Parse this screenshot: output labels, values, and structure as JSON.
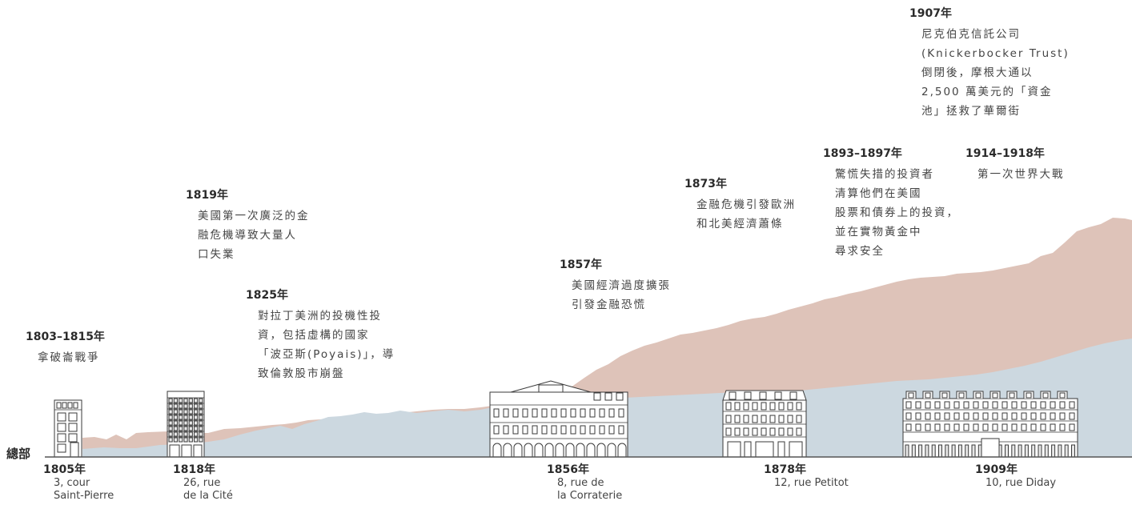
{
  "headquarters_label": "總部",
  "events": [
    {
      "year": "1803–1815年",
      "lines": [
        "拿破崙戰爭"
      ]
    },
    {
      "year": "1819年",
      "lines": [
        "美國第一次廣泛的金",
        "融危機導致大量人",
        "口失業"
      ]
    },
    {
      "year": "1825年",
      "lines": [
        "對拉丁美洲的投機性投",
        "資，包括虛構的國家",
        "「波亞斯(Poyais)」，導",
        "致倫敦股市崩盤"
      ]
    },
    {
      "year": "1857年",
      "lines": [
        "美國經濟過度擴張",
        "引發金融恐慌"
      ]
    },
    {
      "year": "1873年",
      "lines": [
        "金融危機引發歐洲",
        "和北美經濟蕭條"
      ]
    },
    {
      "year": "1893–1897年",
      "lines": [
        "驚慌失措的投資者",
        "清算他們在美國",
        "股票和債券上的投資，",
        "並在實物黃金中",
        "尋求安全"
      ]
    },
    {
      "year": "1907年",
      "lines": [
        "尼克伯克信託公司",
        "(Knickerbocker Trust)",
        "倒閉後，摩根大通以",
        "2,500 萬美元的「資金",
        "池」拯救了華爾街"
      ]
    },
    {
      "year": "1914–1918年",
      "lines": [
        "第一次世界大戰"
      ]
    }
  ],
  "headquarters": [
    {
      "year": "1805年",
      "address": [
        "3, cour",
        "Saint-Pierre"
      ],
      "building": "narrow-townhouse-icon"
    },
    {
      "year": "1818年",
      "address": [
        "26, rue",
        "de la Cité"
      ],
      "building": "apartment-block-icon"
    },
    {
      "year": "1856年",
      "address": [
        "8, rue de",
        "la Corraterie"
      ],
      "building": "arcaded-palace-icon"
    },
    {
      "year": "1878年",
      "address": [
        "12, rue Petitot"
      ],
      "building": "mansard-building-icon"
    },
    {
      "year": "1909年",
      "address": [
        "10, rue Diday"
      ],
      "building": "grand-facade-icon"
    }
  ],
  "colors": {
    "upper_area": "#dec3b9",
    "lower_area": "#ccd8e0",
    "ground_line": "#555555",
    "building_stroke": "#3a3a3a"
  }
}
